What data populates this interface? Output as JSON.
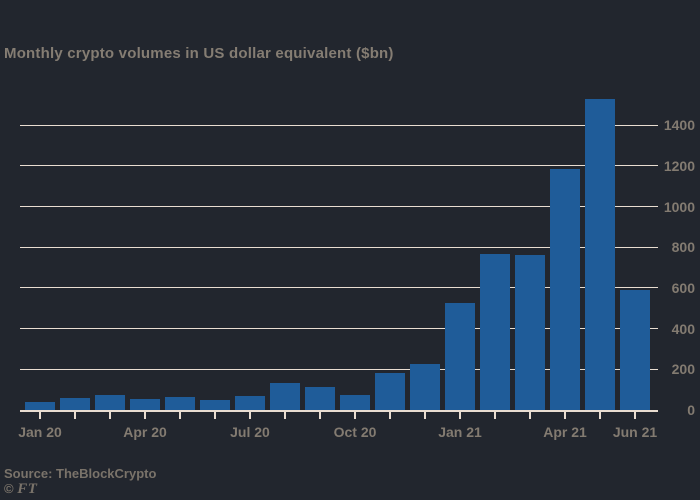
{
  "title": "Monthly crypto volumes in US dollar equivalent ($bn)",
  "footer": {
    "source": "Source: TheBlockCrypto",
    "logo_symbol": "©",
    "logo_text": "FT"
  },
  "colors": {
    "background": "#22262e",
    "bar": "#1f5c99",
    "gridline": "#e9ddd1",
    "title_text": "#857d73",
    "axis_text": "#837b71",
    "muted_text": "#7a736a"
  },
  "chart_data": {
    "type": "bar",
    "title": "Monthly crypto volumes in US dollar equivalent ($bn)",
    "xlabel": "",
    "ylabel": "",
    "categories": [
      "Jan 20",
      "Feb 20",
      "Mar 20",
      "Apr 20",
      "May 20",
      "Jun 20",
      "Jul 20",
      "Aug 20",
      "Sep 20",
      "Oct 20",
      "Nov 20",
      "Dec 20",
      "Jan 21",
      "Feb 21",
      "Mar 21",
      "Apr 21",
      "May 21",
      "Jun 21"
    ],
    "values": [
      40,
      60,
      72,
      54,
      64,
      48,
      70,
      135,
      115,
      75,
      180,
      225,
      525,
      765,
      760,
      1185,
      1530,
      590
    ],
    "x_tick_indices": [
      0,
      3,
      6,
      9,
      12,
      15,
      17
    ],
    "x_tick_labels": [
      "Jan 20",
      "Apr 20",
      "Jul 20",
      "Oct 20",
      "Jan 21",
      "Apr 21",
      "Jun 21"
    ],
    "y_ticks": [
      0,
      200,
      400,
      600,
      800,
      1000,
      1200,
      1400
    ],
    "ylim": [
      0,
      1600
    ],
    "grid": true,
    "legend": false,
    "gridline_orientation": "horizontal",
    "y_axis_side": "right"
  }
}
